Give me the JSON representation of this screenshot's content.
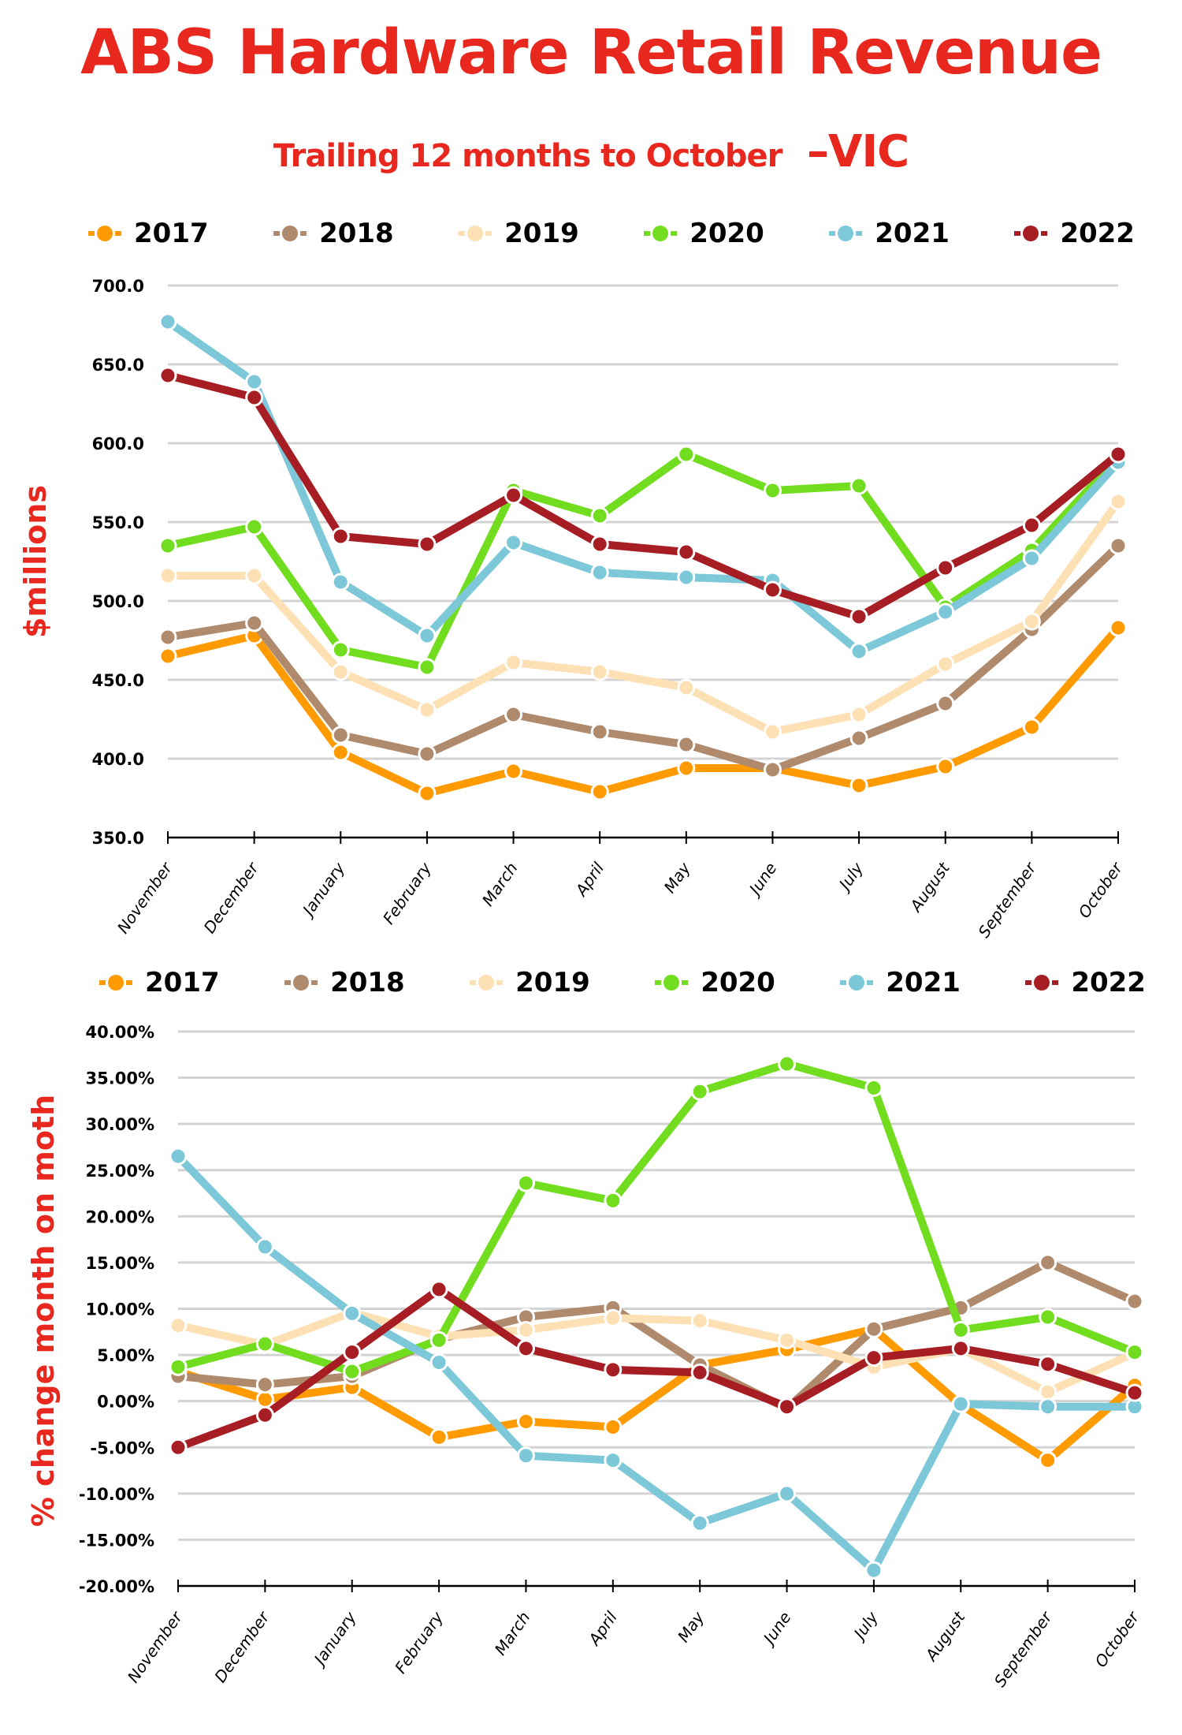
{
  "header": {
    "title": "ABS Hardware Retail Revenue",
    "subtitle": "Trailing 12 months to October",
    "region": "–VIC"
  },
  "series_colors": {
    "2017": "#ff9a00",
    "2018": "#b08a6c",
    "2019": "#fde0b4",
    "2020": "#72dd1f",
    "2021": "#7cc8d8",
    "2022": "#a71d24"
  },
  "title_color": "#e8281e",
  "chart_data": [
    {
      "type": "line",
      "title": "ABS Hardware Retail Revenue",
      "subtitle": "Trailing 12 months to October –VIC",
      "xlabel": "",
      "ylabel": "$millions",
      "ylim": [
        350,
        700
      ],
      "yticks": [
        "700.0",
        "650.0",
        "600.0",
        "550.0",
        "500.0",
        "450.0",
        "400.0",
        "350.0"
      ],
      "ytick_values": [
        700,
        650,
        600,
        550,
        500,
        450,
        400,
        350
      ],
      "grid": true,
      "legend_position": "top",
      "categories": [
        "November",
        "December",
        "January",
        "February",
        "March",
        "April",
        "May",
        "June",
        "July",
        "August",
        "September",
        "October"
      ],
      "series": [
        {
          "name": "2017",
          "values": [
            465,
            478,
            404,
            378,
            392,
            379,
            394,
            394,
            383,
            395,
            420,
            483
          ]
        },
        {
          "name": "2018",
          "values": [
            477,
            486,
            415,
            403,
            428,
            417,
            409,
            393,
            413,
            435,
            482,
            535
          ]
        },
        {
          "name": "2019",
          "values": [
            516,
            516,
            455,
            431,
            461,
            455,
            445,
            417,
            428,
            460,
            487,
            563
          ]
        },
        {
          "name": "2020",
          "values": [
            535,
            547,
            469,
            458,
            570,
            554,
            593,
            570,
            573,
            496,
            532,
            591
          ]
        },
        {
          "name": "2021",
          "values": [
            677,
            639,
            512,
            478,
            537,
            518,
            515,
            513,
            468,
            493,
            527,
            588
          ]
        },
        {
          "name": "2022",
          "values": [
            643,
            629,
            541,
            536,
            567,
            536,
            531,
            507,
            490,
            521,
            548,
            593
          ]
        }
      ]
    },
    {
      "type": "line",
      "title": "",
      "xlabel": "",
      "ylabel": "% change month on moth",
      "ylim": [
        -20,
        40
      ],
      "yticks": [
        "40.00%",
        "35.00%",
        "30.00%",
        "25.00%",
        "20.00%",
        "15.00%",
        "10.00%",
        "5.00%",
        "0.00%",
        "-5.00%",
        "-10.00%",
        "-15.00%",
        "-20.00%"
      ],
      "ytick_values": [
        40,
        35,
        30,
        25,
        20,
        15,
        10,
        5,
        0,
        -5,
        -10,
        -15,
        -20
      ],
      "grid": true,
      "legend_position": "top",
      "categories": [
        "November",
        "December",
        "January",
        "February",
        "March",
        "April",
        "May",
        "June",
        "July",
        "August",
        "September",
        "October"
      ],
      "series": [
        {
          "name": "2017",
          "values": [
            3.2,
            0.2,
            1.5,
            -3.9,
            -2.2,
            -2.8,
            3.9,
            5.6,
            7.8,
            -0.4,
            -6.4,
            1.7
          ]
        },
        {
          "name": "2018",
          "values": [
            2.7,
            1.8,
            2.7,
            6.7,
            9.1,
            10.1,
            3.9,
            -0.8,
            7.8,
            10.1,
            15.0,
            10.8
          ]
        },
        {
          "name": "2019",
          "values": [
            8.2,
            6.1,
            9.6,
            7.0,
            7.7,
            9.0,
            8.7,
            6.6,
            3.7,
            5.7,
            1.0,
            5.2
          ]
        },
        {
          "name": "2020",
          "values": [
            3.7,
            6.2,
            3.2,
            6.6,
            23.6,
            21.7,
            33.5,
            36.5,
            33.9,
            7.7,
            9.1,
            5.3
          ]
        },
        {
          "name": "2021",
          "values": [
            26.5,
            16.7,
            9.5,
            4.2,
            -5.9,
            -6.4,
            -13.2,
            -10.0,
            -18.3,
            -0.3,
            -0.6,
            -0.6
          ]
        },
        {
          "name": "2022",
          "values": [
            -5.0,
            -1.5,
            5.3,
            12.1,
            5.7,
            3.4,
            3.1,
            -0.6,
            4.7,
            5.7,
            4.0,
            0.9
          ]
        }
      ]
    }
  ]
}
